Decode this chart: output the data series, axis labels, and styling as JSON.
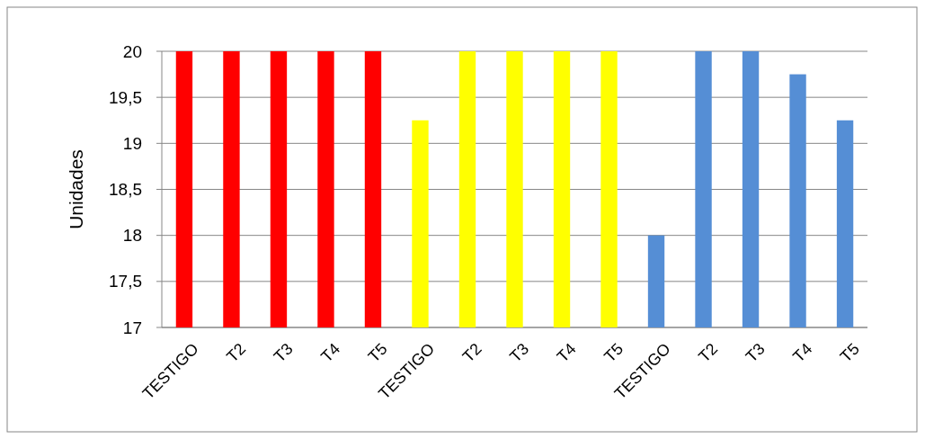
{
  "chart_data": {
    "type": "bar",
    "ylabel": "Unidades",
    "categories": [
      "TESTIGO",
      "T2",
      "T3",
      "T4",
      "T5",
      "TESTIGO",
      "T2",
      "T3",
      "T4",
      "T5",
      "TESTIGO",
      "T2",
      "T3",
      "T4",
      "T5"
    ],
    "values": [
      20,
      20,
      20,
      20,
      20,
      19.25,
      20,
      20,
      20,
      20,
      18,
      20,
      20,
      19.75,
      19.25
    ],
    "colors": [
      "#ff0000",
      "#ff0000",
      "#ff0000",
      "#ff0000",
      "#ff0000",
      "#ffff00",
      "#ffff00",
      "#ffff00",
      "#ffff00",
      "#ffff00",
      "#558ed5",
      "#558ed5",
      "#558ed5",
      "#558ed5",
      "#558ed5"
    ],
    "ylim": [
      17,
      20
    ],
    "yticks": [
      17,
      {
        "value": 17.5,
        "label": "17,5"
      },
      18,
      {
        "value": 18.5,
        "label": "18,5"
      },
      19,
      {
        "value": 19.5,
        "label": "19,5"
      },
      20
    ],
    "grid": "y"
  }
}
